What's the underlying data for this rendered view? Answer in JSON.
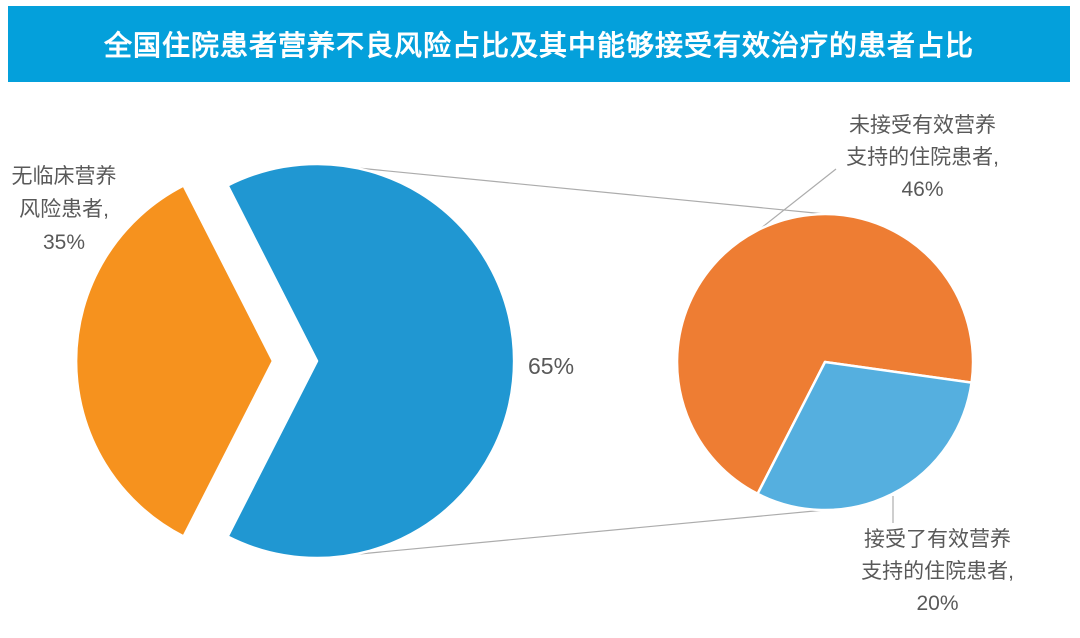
{
  "header": {
    "title": "全国住院患者营养不良风险占比及其中能够接受有效治疗的患者占比",
    "bg_color": "#04A0DB",
    "text_color": "#FFFFFF"
  },
  "chart_data": {
    "type": "pie",
    "subtype": "pie-of-pie",
    "title": "全国住院患者营养不良风险占比及其中能够接受有效治疗的患者占比",
    "legend_position": "none",
    "grid": false,
    "primary_pie": {
      "slices": [
        {
          "value": 65,
          "display": "65%",
          "color": "#2097D2",
          "exploded": true
        },
        {
          "value": 35,
          "display": "无临床营养\n风险患者,\n35%",
          "color": "#F6921E",
          "exploded": true
        }
      ]
    },
    "secondary_pie": {
      "slices": [
        {
          "value": 46,
          "display": "未接受有效营养\n支持的住院患者,\n46%",
          "color": "#EE7D33"
        },
        {
          "value": 20,
          "display": "接受了有效营养\n支持的住院患者,\n20%",
          "color": "#55AFDF"
        }
      ]
    },
    "connector_line_color": "#ACACAC",
    "label_text_color": "#595959"
  }
}
